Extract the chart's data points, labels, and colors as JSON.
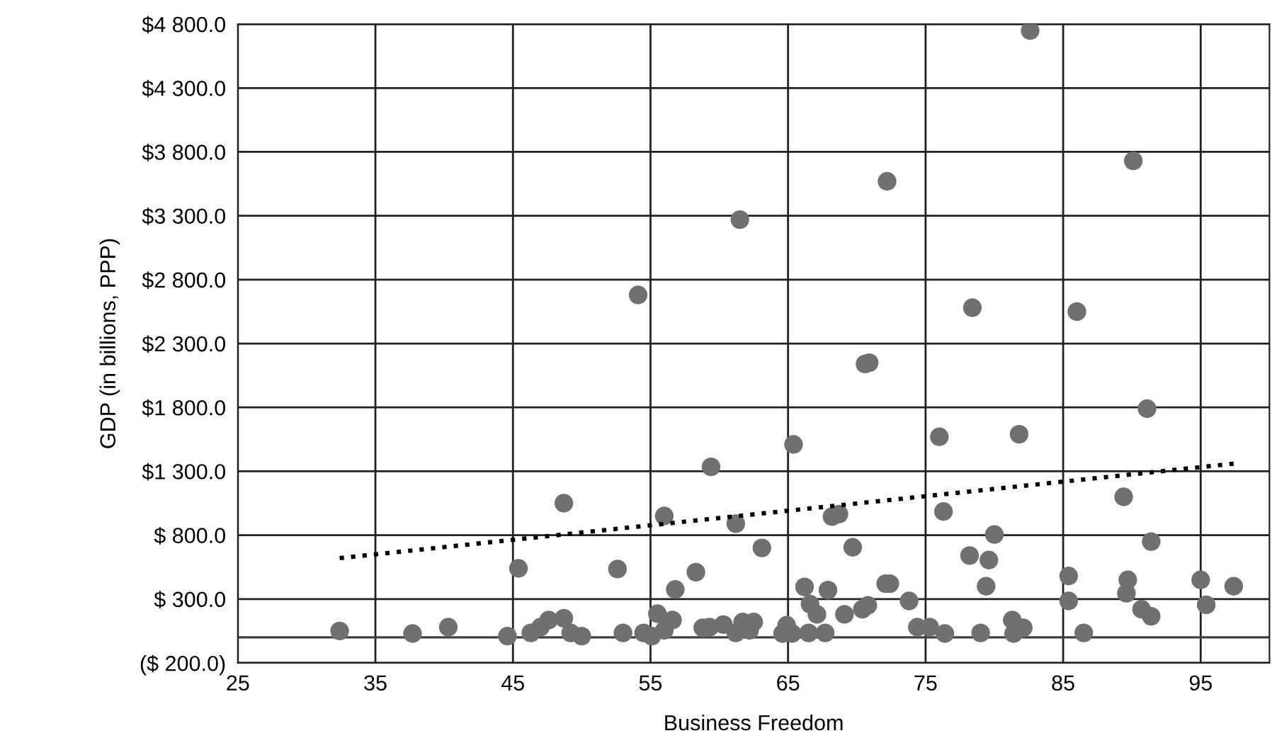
{
  "chart_data": {
    "type": "scatter",
    "xlabel": "Business Freedom",
    "ylabel": "GDP (in billions, PPP)",
    "xlim": [
      25,
      100
    ],
    "xticks": [
      25,
      35,
      45,
      55,
      65,
      75,
      85,
      95
    ],
    "ylim": [
      -200,
      4800
    ],
    "yticks": [
      {
        "value": -200,
        "label": "($ 200.0)"
      },
      {
        "value": 300,
        "label": "$ 300.0"
      },
      {
        "value": 800,
        "label": "$ 800.0"
      },
      {
        "value": 1300,
        "label": "$1 300.0"
      },
      {
        "value": 1800,
        "label": "$1 800.0"
      },
      {
        "value": 2300,
        "label": "$2 300.0"
      },
      {
        "value": 2800,
        "label": "$2 800.0"
      },
      {
        "value": 3300,
        "label": "$3 300.0"
      },
      {
        "value": 3800,
        "label": "$3 800.0"
      },
      {
        "value": 4300,
        "label": "$4 300.0"
      },
      {
        "value": 4800,
        "label": "$4 800.0"
      }
    ],
    "grid": true,
    "marker": "circle",
    "ref_lines": [
      {
        "axis": "y",
        "value": 0,
        "color": "#404040"
      }
    ],
    "series": [
      {
        "color": "#707070",
        "x": [
          82.6,
          90.1,
          72.2,
          61.5,
          54.1,
          78.4,
          86.0,
          70.6,
          70.9,
          65.4,
          76.0,
          81.8,
          91.1,
          89.4,
          76.3,
          68.2,
          68.7,
          61.2,
          63.1,
          69.7,
          80.0,
          78.2,
          79.6,
          91.4,
          85.4,
          89.7,
          89.6,
          95.0,
          97.4,
          95.4,
          90.7,
          91.4,
          85.4,
          86.5,
          79.4,
          81.3,
          82.1,
          81.4,
          79.0,
          76.4,
          74.4,
          75.3,
          73.8,
          72.1,
          72.4,
          70.4,
          70.8,
          69.1,
          67.9,
          66.2,
          66.6,
          67.1,
          66.5,
          67.7,
          64.6,
          65.3,
          64.9,
          62.5,
          62.2,
          59.4,
          48.7,
          56.0,
          45.4,
          52.6,
          58.3,
          56.8,
          55.5,
          56.6,
          56.0,
          54.5,
          55.1,
          53.0,
          50.0,
          49.2,
          48.7,
          47.6,
          47.0,
          46.3,
          44.6,
          40.3,
          37.7,
          32.4,
          58.8,
          59.3,
          60.3,
          61.2,
          61.7
        ],
        "values": [
          4750,
          3730,
          3570,
          3270,
          2680,
          2580,
          2550,
          2140,
          2150,
          1510,
          1570,
          1590,
          1790,
          1100,
          985,
          945,
          965,
          890,
          700,
          705,
          805,
          640,
          605,
          750,
          480,
          450,
          345,
          450,
          400,
          255,
          220,
          165,
          285,
          35,
          400,
          135,
          75,
          30,
          35,
          30,
          80,
          80,
          285,
          420,
          420,
          220,
          250,
          180,
          370,
          395,
          260,
          180,
          35,
          35,
          30,
          30,
          95,
          120,
          55,
          1335,
          1050,
          950,
          540,
          535,
          510,
          375,
          185,
          135,
          55,
          35,
          10,
          35,
          10,
          35,
          150,
          135,
          80,
          35,
          10,
          80,
          30,
          50,
          75,
          80,
          100,
          35,
          120
        ]
      },
      {
        "type": "line",
        "color": "#000000",
        "line_style": "dotted",
        "marker": "none",
        "x": [
          32.4,
          97.4
        ],
        "values": [
          620,
          1360
        ]
      }
    ]
  }
}
